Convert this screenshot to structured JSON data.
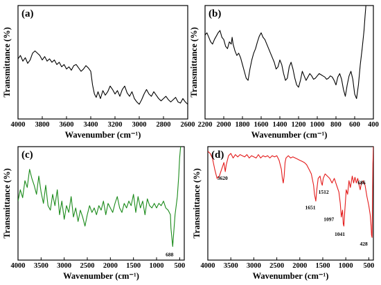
{
  "chart_data": [
    {
      "id": "a",
      "type": "line",
      "panel_label": "(a)",
      "xlabel": "Wavenumber",
      "xlabel_unit": "(cm⁻¹)",
      "ylabel": "Transmittance",
      "ylabel_unit": "(%)",
      "xlim": [
        4000,
        2600
      ],
      "ylim": [
        0,
        1
      ],
      "x_ticks": [
        4000,
        3800,
        3600,
        3400,
        3200,
        3000,
        2800,
        2600
      ],
      "y_ticks": [],
      "color": "#000000",
      "series": [
        {
          "x": [
            4000,
            3980,
            3960,
            3940,
            3920,
            3900,
            3880,
            3860,
            3840,
            3820,
            3800,
            3780,
            3760,
            3740,
            3720,
            3700,
            3680,
            3660,
            3640,
            3620,
            3600,
            3580,
            3560,
            3540,
            3520,
            3500,
            3480,
            3460,
            3440,
            3420,
            3400,
            3385,
            3370,
            3355,
            3340,
            3320,
            3300,
            3280,
            3260,
            3240,
            3220,
            3200,
            3180,
            3160,
            3140,
            3120,
            3100,
            3080,
            3060,
            3040,
            3020,
            3000,
            2980,
            2960,
            2940,
            2920,
            2900,
            2880,
            2860,
            2840,
            2820,
            2800,
            2780,
            2760,
            2740,
            2720,
            2700,
            2680,
            2660,
            2640,
            2620,
            2600
          ],
          "y": [
            0.53,
            0.56,
            0.51,
            0.54,
            0.49,
            0.52,
            0.58,
            0.6,
            0.58,
            0.56,
            0.52,
            0.55,
            0.51,
            0.53,
            0.5,
            0.52,
            0.48,
            0.5,
            0.46,
            0.48,
            0.44,
            0.46,
            0.43,
            0.47,
            0.48,
            0.45,
            0.42,
            0.44,
            0.47,
            0.45,
            0.42,
            0.3,
            0.22,
            0.19,
            0.24,
            0.18,
            0.25,
            0.21,
            0.24,
            0.29,
            0.26,
            0.22,
            0.25,
            0.2,
            0.26,
            0.29,
            0.23,
            0.2,
            0.24,
            0.18,
            0.15,
            0.13,
            0.17,
            0.22,
            0.26,
            0.22,
            0.2,
            0.24,
            0.21,
            0.18,
            0.16,
            0.18,
            0.2,
            0.17,
            0.15,
            0.17,
            0.19,
            0.15,
            0.14,
            0.18,
            0.15,
            0.13
          ]
        }
      ],
      "annotations": []
    },
    {
      "id": "b",
      "type": "line",
      "panel_label": "(b)",
      "xlabel": "Wavenumber",
      "xlabel_unit": "(cm⁻¹)",
      "ylabel": "Transmittance",
      "ylabel_unit": "(%)",
      "xlim": [
        2200,
        400
      ],
      "ylim": [
        0,
        1
      ],
      "x_ticks": [
        2200,
        2000,
        1800,
        1600,
        1400,
        1200,
        1000,
        800,
        600,
        400
      ],
      "y_ticks": [],
      "color": "#000000",
      "series": [
        {
          "x": [
            2200,
            2180,
            2160,
            2140,
            2120,
            2100,
            2080,
            2060,
            2040,
            2020,
            2000,
            1980,
            1960,
            1940,
            1920,
            1910,
            1900,
            1880,
            1860,
            1840,
            1820,
            1800,
            1780,
            1760,
            1740,
            1720,
            1700,
            1680,
            1660,
            1640,
            1620,
            1600,
            1580,
            1560,
            1540,
            1520,
            1500,
            1480,
            1460,
            1440,
            1420,
            1400,
            1380,
            1360,
            1340,
            1320,
            1300,
            1280,
            1260,
            1240,
            1220,
            1200,
            1180,
            1160,
            1140,
            1120,
            1100,
            1080,
            1060,
            1040,
            1020,
            1000,
            980,
            960,
            940,
            920,
            900,
            880,
            860,
            840,
            820,
            800,
            780,
            760,
            740,
            720,
            700,
            680,
            660,
            640,
            620,
            600,
            580,
            560,
            540,
            520,
            500,
            490,
            480
          ],
          "y": [
            0.74,
            0.76,
            0.72,
            0.68,
            0.66,
            0.7,
            0.73,
            0.76,
            0.78,
            0.72,
            0.7,
            0.64,
            0.62,
            0.68,
            0.66,
            0.72,
            0.66,
            0.6,
            0.56,
            0.58,
            0.54,
            0.48,
            0.42,
            0.36,
            0.34,
            0.44,
            0.52,
            0.58,
            0.62,
            0.68,
            0.73,
            0.76,
            0.72,
            0.7,
            0.66,
            0.62,
            0.58,
            0.54,
            0.5,
            0.44,
            0.46,
            0.52,
            0.48,
            0.4,
            0.34,
            0.36,
            0.46,
            0.5,
            0.44,
            0.36,
            0.3,
            0.28,
            0.34,
            0.42,
            0.38,
            0.34,
            0.37,
            0.4,
            0.38,
            0.35,
            0.36,
            0.38,
            0.4,
            0.39,
            0.38,
            0.37,
            0.35,
            0.36,
            0.38,
            0.37,
            0.34,
            0.3,
            0.37,
            0.4,
            0.35,
            0.26,
            0.2,
            0.3,
            0.38,
            0.42,
            0.35,
            0.22,
            0.18,
            0.3,
            0.48,
            0.62,
            0.78,
            0.9,
            1.0
          ]
        }
      ],
      "annotations": []
    },
    {
      "id": "c",
      "type": "line",
      "panel_label": "(c)",
      "xlabel": "Wavenumber",
      "xlabel_unit": "(cm⁻¹)",
      "ylabel": "Transmittance",
      "ylabel_unit": "(%)",
      "xlim": [
        4000,
        400
      ],
      "ylim": [
        0,
        1
      ],
      "x_ticks": [
        4000,
        3500,
        3000,
        2500,
        2000,
        1500,
        1000,
        500
      ],
      "y_ticks": [],
      "color": "#1a8a1a",
      "series": [
        {
          "x": [
            4000,
            3950,
            3900,
            3850,
            3800,
            3750,
            3700,
            3650,
            3600,
            3550,
            3500,
            3450,
            3400,
            3350,
            3300,
            3250,
            3200,
            3150,
            3100,
            3050,
            3000,
            2950,
            2900,
            2850,
            2800,
            2750,
            2700,
            2650,
            2600,
            2550,
            2500,
            2450,
            2400,
            2350,
            2300,
            2250,
            2200,
            2150,
            2100,
            2050,
            2000,
            1950,
            1900,
            1850,
            1800,
            1750,
            1700,
            1650,
            1600,
            1550,
            1500,
            1450,
            1400,
            1350,
            1300,
            1250,
            1200,
            1150,
            1100,
            1050,
            1000,
            950,
            900,
            850,
            800,
            750,
            700,
            688,
            650,
            600,
            550,
            520,
            500,
            480
          ],
          "y": [
            0.52,
            0.62,
            0.55,
            0.7,
            0.64,
            0.8,
            0.72,
            0.66,
            0.58,
            0.74,
            0.6,
            0.5,
            0.66,
            0.48,
            0.44,
            0.58,
            0.48,
            0.62,
            0.4,
            0.52,
            0.36,
            0.48,
            0.42,
            0.56,
            0.38,
            0.46,
            0.34,
            0.44,
            0.38,
            0.3,
            0.4,
            0.48,
            0.42,
            0.46,
            0.4,
            0.48,
            0.44,
            0.52,
            0.4,
            0.5,
            0.46,
            0.42,
            0.5,
            0.56,
            0.46,
            0.42,
            0.5,
            0.46,
            0.52,
            0.48,
            0.58,
            0.42,
            0.56,
            0.46,
            0.52,
            0.4,
            0.54,
            0.48,
            0.46,
            0.5,
            0.46,
            0.5,
            0.48,
            0.52,
            0.46,
            0.44,
            0.4,
            0.28,
            0.12,
            0.4,
            0.56,
            0.74,
            0.9,
            1.0
          ]
        }
      ],
      "annotations": [
        {
          "text": "688",
          "x": 688,
          "y": 0.12
        }
      ]
    },
    {
      "id": "d",
      "type": "line",
      "panel_label": "(d)",
      "xlabel": "Wavenumber",
      "xlabel_unit": "(cm⁻¹)",
      "ylabel": "Transmittance",
      "ylabel_unit": "(%)",
      "xlim": [
        4000,
        400
      ],
      "ylim": [
        0,
        1
      ],
      "x_ticks": [
        4000,
        3500,
        3000,
        2500,
        2000,
        1500,
        1000,
        500
      ],
      "y_ticks": [],
      "color": "#e41a1a",
      "series": [
        {
          "x": [
            4000,
            3950,
            3900,
            3850,
            3800,
            3750,
            3700,
            3650,
            3620,
            3600,
            3550,
            3500,
            3450,
            3400,
            3350,
            3300,
            3250,
            3200,
            3150,
            3100,
            3050,
            3000,
            2950,
            2900,
            2850,
            2800,
            2750,
            2700,
            2650,
            2600,
            2550,
            2500,
            2450,
            2400,
            2380,
            2360,
            2340,
            2320,
            2300,
            2250,
            2200,
            2150,
            2100,
            2050,
            2000,
            1950,
            1900,
            1850,
            1800,
            1750,
            1700,
            1680,
            1651,
            1630,
            1600,
            1560,
            1530,
            1512,
            1490,
            1450,
            1400,
            1350,
            1300,
            1250,
            1200,
            1150,
            1120,
            1097,
            1070,
            1055,
            1041,
            1020,
            990,
            960,
            930,
            900,
            860,
            830,
            800,
            770,
            740,
            710,
            686,
            660,
            620,
            580,
            540,
            500,
            470,
            450,
            440,
            428,
            420,
            410,
            400
          ],
          "y": [
            0.96,
            0.94,
            0.9,
            0.8,
            0.72,
            0.74,
            0.8,
            0.86,
            0.78,
            0.84,
            0.92,
            0.94,
            0.9,
            0.93,
            0.91,
            0.93,
            0.92,
            0.91,
            0.93,
            0.9,
            0.92,
            0.91,
            0.9,
            0.93,
            0.9,
            0.92,
            0.91,
            0.92,
            0.9,
            0.92,
            0.91,
            0.92,
            0.88,
            0.8,
            0.72,
            0.68,
            0.74,
            0.86,
            0.9,
            0.92,
            0.9,
            0.91,
            0.9,
            0.89,
            0.88,
            0.87,
            0.86,
            0.84,
            0.8,
            0.76,
            0.66,
            0.58,
            0.52,
            0.62,
            0.72,
            0.74,
            0.68,
            0.66,
            0.72,
            0.76,
            0.74,
            0.72,
            0.68,
            0.72,
            0.66,
            0.6,
            0.5,
            0.38,
            0.44,
            0.32,
            0.3,
            0.44,
            0.62,
            0.58,
            0.7,
            0.64,
            0.74,
            0.68,
            0.73,
            0.68,
            0.72,
            0.66,
            0.62,
            0.68,
            0.7,
            0.66,
            0.56,
            0.48,
            0.4,
            0.3,
            0.22,
            0.2,
            0.5,
            0.85,
            1.0
          ]
        }
      ],
      "annotations": [
        {
          "text": "3620",
          "x": 3620,
          "y": 0.78
        },
        {
          "text": "1651",
          "x": 1651,
          "y": 0.52
        },
        {
          "text": "1512",
          "x": 1512,
          "y": 0.66
        },
        {
          "text": "1097",
          "x": 1097,
          "y": 0.38
        },
        {
          "text": "1041",
          "x": 1041,
          "y": 0.3
        },
        {
          "text": "686",
          "x": 686,
          "y": 0.62
        },
        {
          "text": "428",
          "x": 428,
          "y": 0.2
        }
      ]
    }
  ]
}
